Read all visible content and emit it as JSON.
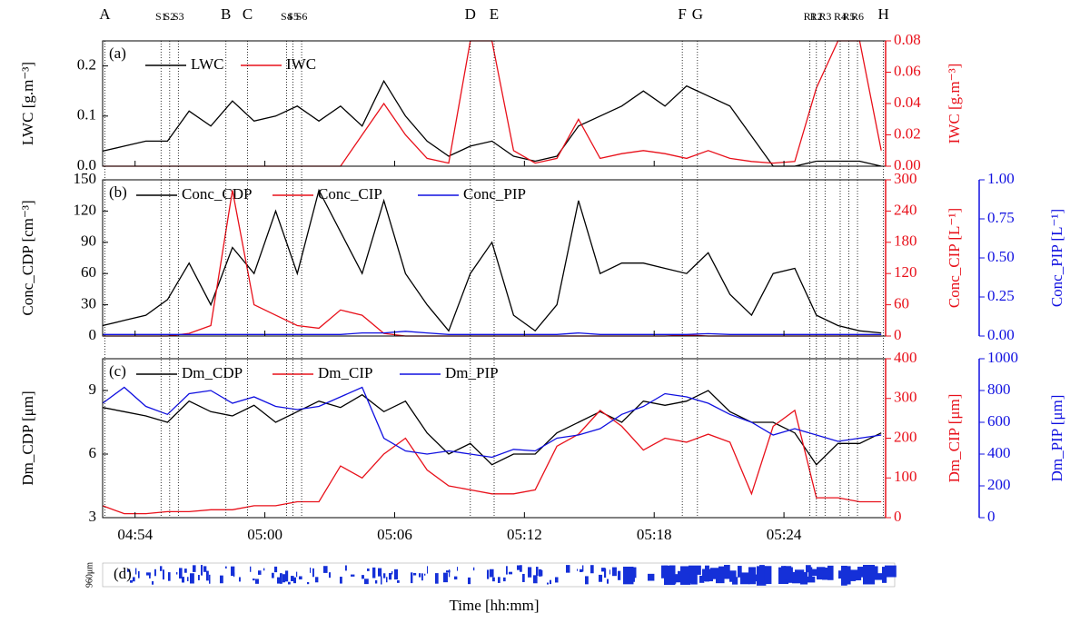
{
  "chart_data": [
    {
      "type": "line",
      "label": "(a)",
      "ylabel": "LWC [g.m⁻³]",
      "y2label": "IWC [g.m⁻³]",
      "ylim": [
        0,
        0.25
      ],
      "yticks": [
        {
          "value": 0,
          "label": "0.0"
        },
        0.1,
        0.2
      ],
      "y2lim": [
        0,
        0.08
      ],
      "y2ticks": [
        {
          "value": 0,
          "label": "0.00"
        },
        0.02,
        0.04,
        0.06,
        0.08
      ],
      "x": [
        292.5,
        293.5,
        294.5,
        295.5,
        296.5,
        297.5,
        298.5,
        299.5,
        300.5,
        301.5,
        302.5,
        303.5,
        304.5,
        305.5,
        306.5,
        307.5,
        308.5,
        309.5,
        310.5,
        311.5,
        312.5,
        313.5,
        314.5,
        315.5,
        316.5,
        317.5,
        318.5,
        319.5,
        320.5,
        321.5,
        322.5,
        323.5,
        324.5,
        325.5,
        326.5,
        327.5,
        328.5
      ],
      "series": [
        {
          "name": "LWC",
          "color": "#000000",
          "values": [
            0.03,
            0.04,
            0.05,
            0.05,
            0.11,
            0.08,
            0.13,
            0.09,
            0.1,
            0.12,
            0.09,
            0.12,
            0.08,
            0.17,
            0.1,
            0.05,
            0.02,
            0.04,
            0.05,
            0.02,
            0.01,
            0.02,
            0.08,
            0.1,
            0.12,
            0.15,
            0.12,
            0.16,
            0.14,
            0.12,
            0.06,
            0.0,
            0.0,
            0.01,
            0.01,
            0.01,
            0.0
          ]
        },
        {
          "name": "IWC",
          "color": "#e8101a",
          "axis": "y2",
          "values": [
            0,
            0,
            0,
            0,
            0,
            0,
            0,
            0,
            0,
            0,
            0,
            0,
            0.02,
            0.04,
            0.02,
            0.005,
            0.002,
            0.08,
            0.08,
            0.01,
            0.002,
            0.005,
            0.03,
            0.005,
            0.008,
            0.01,
            0.008,
            0.005,
            0.01,
            0.005,
            0.003,
            0.002,
            0.003,
            0.05,
            0.08,
            0.08,
            0.01
          ]
        }
      ]
    },
    {
      "type": "line",
      "label": "(b)",
      "ylabel": "Conc_CDP [cm⁻³]",
      "y2label": "Conc_CIP [L⁻¹]",
      "y3label": "Conc_PIP [L⁻¹]",
      "ylim": [
        0,
        150
      ],
      "yticks": [
        0,
        30,
        60,
        90,
        120,
        150
      ],
      "y2lim": [
        0,
        300
      ],
      "y2ticks": [
        0,
        60,
        120,
        180,
        240,
        300
      ],
      "y3lim": [
        0,
        1
      ],
      "y3ticks": [
        {
          "value": 0,
          "label": "0.00"
        },
        0.25,
        {
          "value": 0.5,
          "label": "0.50"
        },
        0.75,
        {
          "value": 1,
          "label": "1.00"
        }
      ],
      "x": [
        292.5,
        293.5,
        294.5,
        295.5,
        296.5,
        297.5,
        298.5,
        299.5,
        300.5,
        301.5,
        302.5,
        303.5,
        304.5,
        305.5,
        306.5,
        307.5,
        308.5,
        309.5,
        310.5,
        311.5,
        312.5,
        313.5,
        314.5,
        315.5,
        316.5,
        317.5,
        318.5,
        319.5,
        320.5,
        321.5,
        322.5,
        323.5,
        324.5,
        325.5,
        326.5,
        327.5,
        328.5
      ],
      "series": [
        {
          "name": "Conc_CDP",
          "color": "#000000",
          "values": [
            10,
            15,
            20,
            35,
            70,
            30,
            85,
            60,
            120,
            60,
            140,
            100,
            60,
            130,
            60,
            30,
            5,
            60,
            90,
            20,
            5,
            30,
            130,
            60,
            70,
            70,
            65,
            60,
            80,
            40,
            20,
            60,
            65,
            20,
            10,
            5,
            3
          ]
        },
        {
          "name": "Conc_CIP",
          "color": "#e8101a",
          "axis": "y2",
          "values": [
            0,
            0,
            0,
            0,
            5,
            20,
            280,
            60,
            40,
            20,
            15,
            50,
            40,
            5,
            0,
            0,
            0,
            0,
            0,
            0,
            0,
            0,
            0,
            0,
            0,
            0,
            0,
            2,
            0,
            0,
            0,
            0,
            0,
            0,
            0,
            0,
            0
          ]
        },
        {
          "name": "Conc_PIP",
          "color": "#1010e0",
          "axis": "y3",
          "values": [
            0.01,
            0.01,
            0.01,
            0.01,
            0.01,
            0.01,
            0.01,
            0.01,
            0.01,
            0.01,
            0.01,
            0.01,
            0.02,
            0.02,
            0.03,
            0.02,
            0.01,
            0.01,
            0.01,
            0.01,
            0.01,
            0.01,
            0.02,
            0.01,
            0.01,
            0.01,
            0.01,
            0.01,
            0.015,
            0.01,
            0.01,
            0.01,
            0.01,
            0.01,
            0.01,
            0.01,
            0.01
          ]
        }
      ]
    },
    {
      "type": "line",
      "label": "(c)",
      "ylabel": "Dm_CDP [μm]",
      "y2label": "Dm_CIP [μm]",
      "y3label": "Dm_PIP [μm]",
      "xlabel": "Time [hh:mm]",
      "xlim": [
        292.5,
        328.7
      ],
      "xticks": [
        {
          "value": 294,
          "label": "04:54"
        },
        {
          "value": 300,
          "label": "05:00"
        },
        {
          "value": 306,
          "label": "05:06"
        },
        {
          "value": 312,
          "label": "05:12"
        },
        {
          "value": 318,
          "label": "05:18"
        },
        {
          "value": 324,
          "label": "05:24"
        }
      ],
      "ylim": [
        3,
        10.5
      ],
      "yticks": [
        3,
        6,
        9
      ],
      "y2lim": [
        0,
        400
      ],
      "y2ticks": [
        0,
        100,
        200,
        300,
        400
      ],
      "y3lim": [
        0,
        1000
      ],
      "y3ticks": [
        0,
        200,
        400,
        600,
        800,
        1000
      ],
      "x": [
        292.5,
        293.5,
        294.5,
        295.5,
        296.5,
        297.5,
        298.5,
        299.5,
        300.5,
        301.5,
        302.5,
        303.5,
        304.5,
        305.5,
        306.5,
        307.5,
        308.5,
        309.5,
        310.5,
        311.5,
        312.5,
        313.5,
        314.5,
        315.5,
        316.5,
        317.5,
        318.5,
        319.5,
        320.5,
        321.5,
        322.5,
        323.5,
        324.5,
        325.5,
        326.5,
        327.5,
        328.5
      ],
      "series": [
        {
          "name": "Dm_CDP",
          "color": "#000000",
          "values": [
            8.2,
            8.0,
            7.8,
            7.5,
            8.5,
            8.0,
            7.8,
            8.3,
            7.5,
            8.0,
            8.5,
            8.2,
            8.8,
            8.0,
            8.5,
            7.0,
            6.0,
            6.5,
            5.5,
            6.0,
            6.0,
            7.0,
            7.5,
            8.0,
            7.5,
            8.5,
            8.3,
            8.5,
            9.0,
            8.0,
            7.5,
            7.5,
            7.0,
            5.5,
            6.5,
            6.5,
            7.0
          ]
        },
        {
          "name": "Dm_CIP",
          "color": "#e8101a",
          "axis": "y2",
          "values": [
            30,
            10,
            10,
            15,
            15,
            20,
            20,
            30,
            30,
            40,
            40,
            130,
            100,
            160,
            200,
            120,
            80,
            70,
            60,
            60,
            70,
            180,
            210,
            270,
            230,
            170,
            200,
            190,
            210,
            190,
            60,
            230,
            270,
            50,
            50,
            40,
            40
          ]
        },
        {
          "name": "Dm_PIP",
          "color": "#1010e0",
          "axis": "y3",
          "values": [
            720,
            820,
            700,
            650,
            780,
            800,
            720,
            760,
            700,
            680,
            700,
            760,
            820,
            500,
            420,
            400,
            420,
            400,
            380,
            430,
            420,
            500,
            520,
            560,
            650,
            700,
            780,
            760,
            720,
            650,
            600,
            520,
            560,
            520,
            480,
            500,
            520
          ]
        }
      ]
    }
  ],
  "events": [
    {
      "label": "A",
      "x": 292.6
    },
    {
      "label": "S1",
      "x": 295.2
    },
    {
      "label": "S2",
      "x": 295.6
    },
    {
      "label": "S3",
      "x": 296.0
    },
    {
      "label": "B",
      "x": 298.2
    },
    {
      "label": "C",
      "x": 299.2
    },
    {
      "label": "S4",
      "x": 301.0
    },
    {
      "label": "S5",
      "x": 301.3
    },
    {
      "label": "S6",
      "x": 301.7
    },
    {
      "label": "D",
      "x": 309.5
    },
    {
      "label": "E",
      "x": 310.6
    },
    {
      "label": "F",
      "x": 319.3
    },
    {
      "label": "G",
      "x": 320.0
    },
    {
      "label": "R1",
      "x": 325.2
    },
    {
      "label": "R2",
      "x": 325.5
    },
    {
      "label": "R3",
      "x": 325.9
    },
    {
      "label": "R4",
      "x": 326.6
    },
    {
      "label": "R5",
      "x": 327.0
    },
    {
      "label": "R6",
      "x": 327.4
    },
    {
      "label": "H",
      "x": 328.6
    }
  ],
  "image_strip": {
    "label": "(d)",
    "scale": "960μm"
  }
}
